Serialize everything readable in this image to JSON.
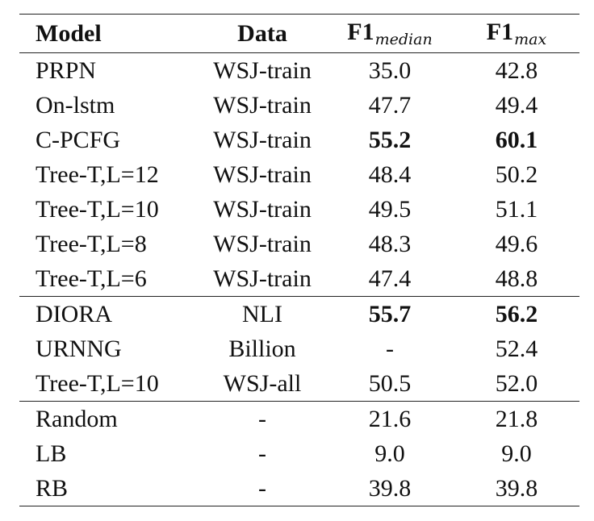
{
  "header": {
    "model": "Model",
    "data": "Data",
    "f1_median": "F1",
    "f1_median_sub": "median",
    "f1_max": "F1",
    "f1_max_sub": "max"
  },
  "groups": [
    {
      "rows": [
        {
          "model": "PRPN",
          "data": "WSJ-train",
          "f1_median": "35.0",
          "f1_max": "42.8"
        },
        {
          "model": "On-lstm",
          "data": "WSJ-train",
          "f1_median": "47.7",
          "f1_max": "49.4"
        },
        {
          "model": "C-PCFG",
          "data": "WSJ-train",
          "f1_median": "55.2",
          "f1_max": "60.1"
        },
        {
          "model": "Tree-T,L=12",
          "data": "WSJ-train",
          "f1_median": "48.4",
          "f1_max": "50.2"
        },
        {
          "model": "Tree-T,L=10",
          "data": "WSJ-train",
          "f1_median": "49.5",
          "f1_max": "51.1"
        },
        {
          "model": "Tree-T,L=8",
          "data": "WSJ-train",
          "f1_median": "48.3",
          "f1_max": "49.6"
        },
        {
          "model": "Tree-T,L=6",
          "data": "WSJ-train",
          "f1_median": "47.4",
          "f1_max": "48.8"
        }
      ]
    },
    {
      "rows": [
        {
          "model": "DIORA",
          "data": "NLI",
          "f1_median": "55.7",
          "f1_max": "56.2"
        },
        {
          "model": "URNNG",
          "data": "Billion",
          "f1_median": "-",
          "f1_max": "52.4"
        },
        {
          "model": "Tree-T,L=10",
          "data": "WSJ-all",
          "f1_median": "50.5",
          "f1_max": "52.0"
        }
      ]
    },
    {
      "rows": [
        {
          "model": "Random",
          "data": "-",
          "f1_median": "21.6",
          "f1_max": "21.8"
        },
        {
          "model": "LB",
          "data": "-",
          "f1_median": "9.0",
          "f1_max": "9.0"
        },
        {
          "model": "RB",
          "data": "-",
          "f1_median": "39.8",
          "f1_max": "39.8"
        }
      ]
    }
  ]
}
